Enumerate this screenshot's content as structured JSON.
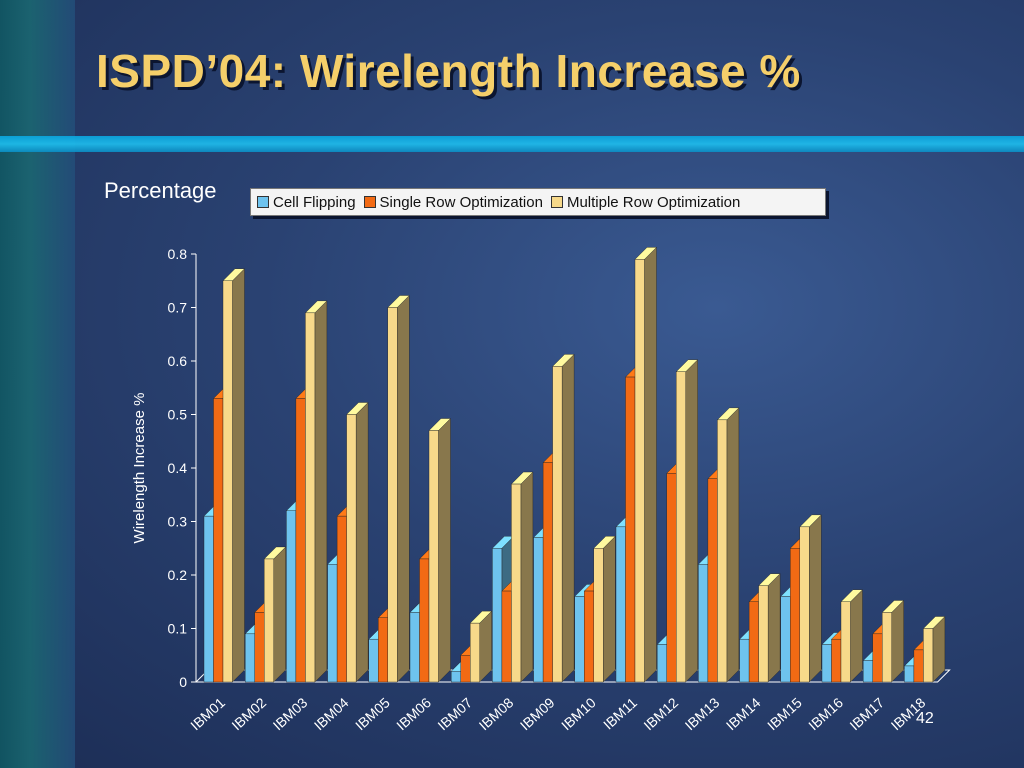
{
  "slide": {
    "title": "ISPD’04: Wirelength Increase %",
    "y_caption": "Percentage",
    "page_number": "42"
  },
  "chart_data": {
    "type": "bar",
    "xlabel": "",
    "ylabel": "Wirelength Increase %",
    "ylim": [
      0,
      0.8
    ],
    "yticks": [
      "0",
      "0.1",
      "0.2",
      "0.3",
      "0.4",
      "0.5",
      "0.6",
      "0.7",
      "0.8"
    ],
    "legend_placement": "top",
    "grid": false,
    "categories": [
      "IBM01",
      "IBM02",
      "IBM03",
      "IBM04",
      "IBM05",
      "IBM06",
      "IBM07",
      "IBM08",
      "IBM09",
      "IBM10",
      "IBM11",
      "IBM12",
      "IBM13",
      "IBM14",
      "IBM15",
      "IBM16",
      "IBM17",
      "IBM18"
    ],
    "series": [
      {
        "name": "Cell Flipping",
        "color": "#6ec3ee",
        "values": [
          0.31,
          0.09,
          0.32,
          0.22,
          0.08,
          0.13,
          0.02,
          0.25,
          0.27,
          0.16,
          0.29,
          0.07,
          0.22,
          0.08,
          0.16,
          0.07,
          0.04,
          0.03
        ]
      },
      {
        "name": "Single Row Optimization",
        "color": "#f26a14",
        "values": [
          0.53,
          0.13,
          0.53,
          0.31,
          0.12,
          0.23,
          0.05,
          0.17,
          0.41,
          0.17,
          0.57,
          0.39,
          0.38,
          0.15,
          0.25,
          0.08,
          0.09,
          0.06
        ]
      },
      {
        "name": "Multiple Row Optimization",
        "color": "#f7d98a",
        "values": [
          0.75,
          0.23,
          0.69,
          0.5,
          0.7,
          0.47,
          0.11,
          0.37,
          0.59,
          0.25,
          0.79,
          0.58,
          0.49,
          0.18,
          0.29,
          0.15,
          0.13,
          0.1
        ]
      }
    ]
  }
}
